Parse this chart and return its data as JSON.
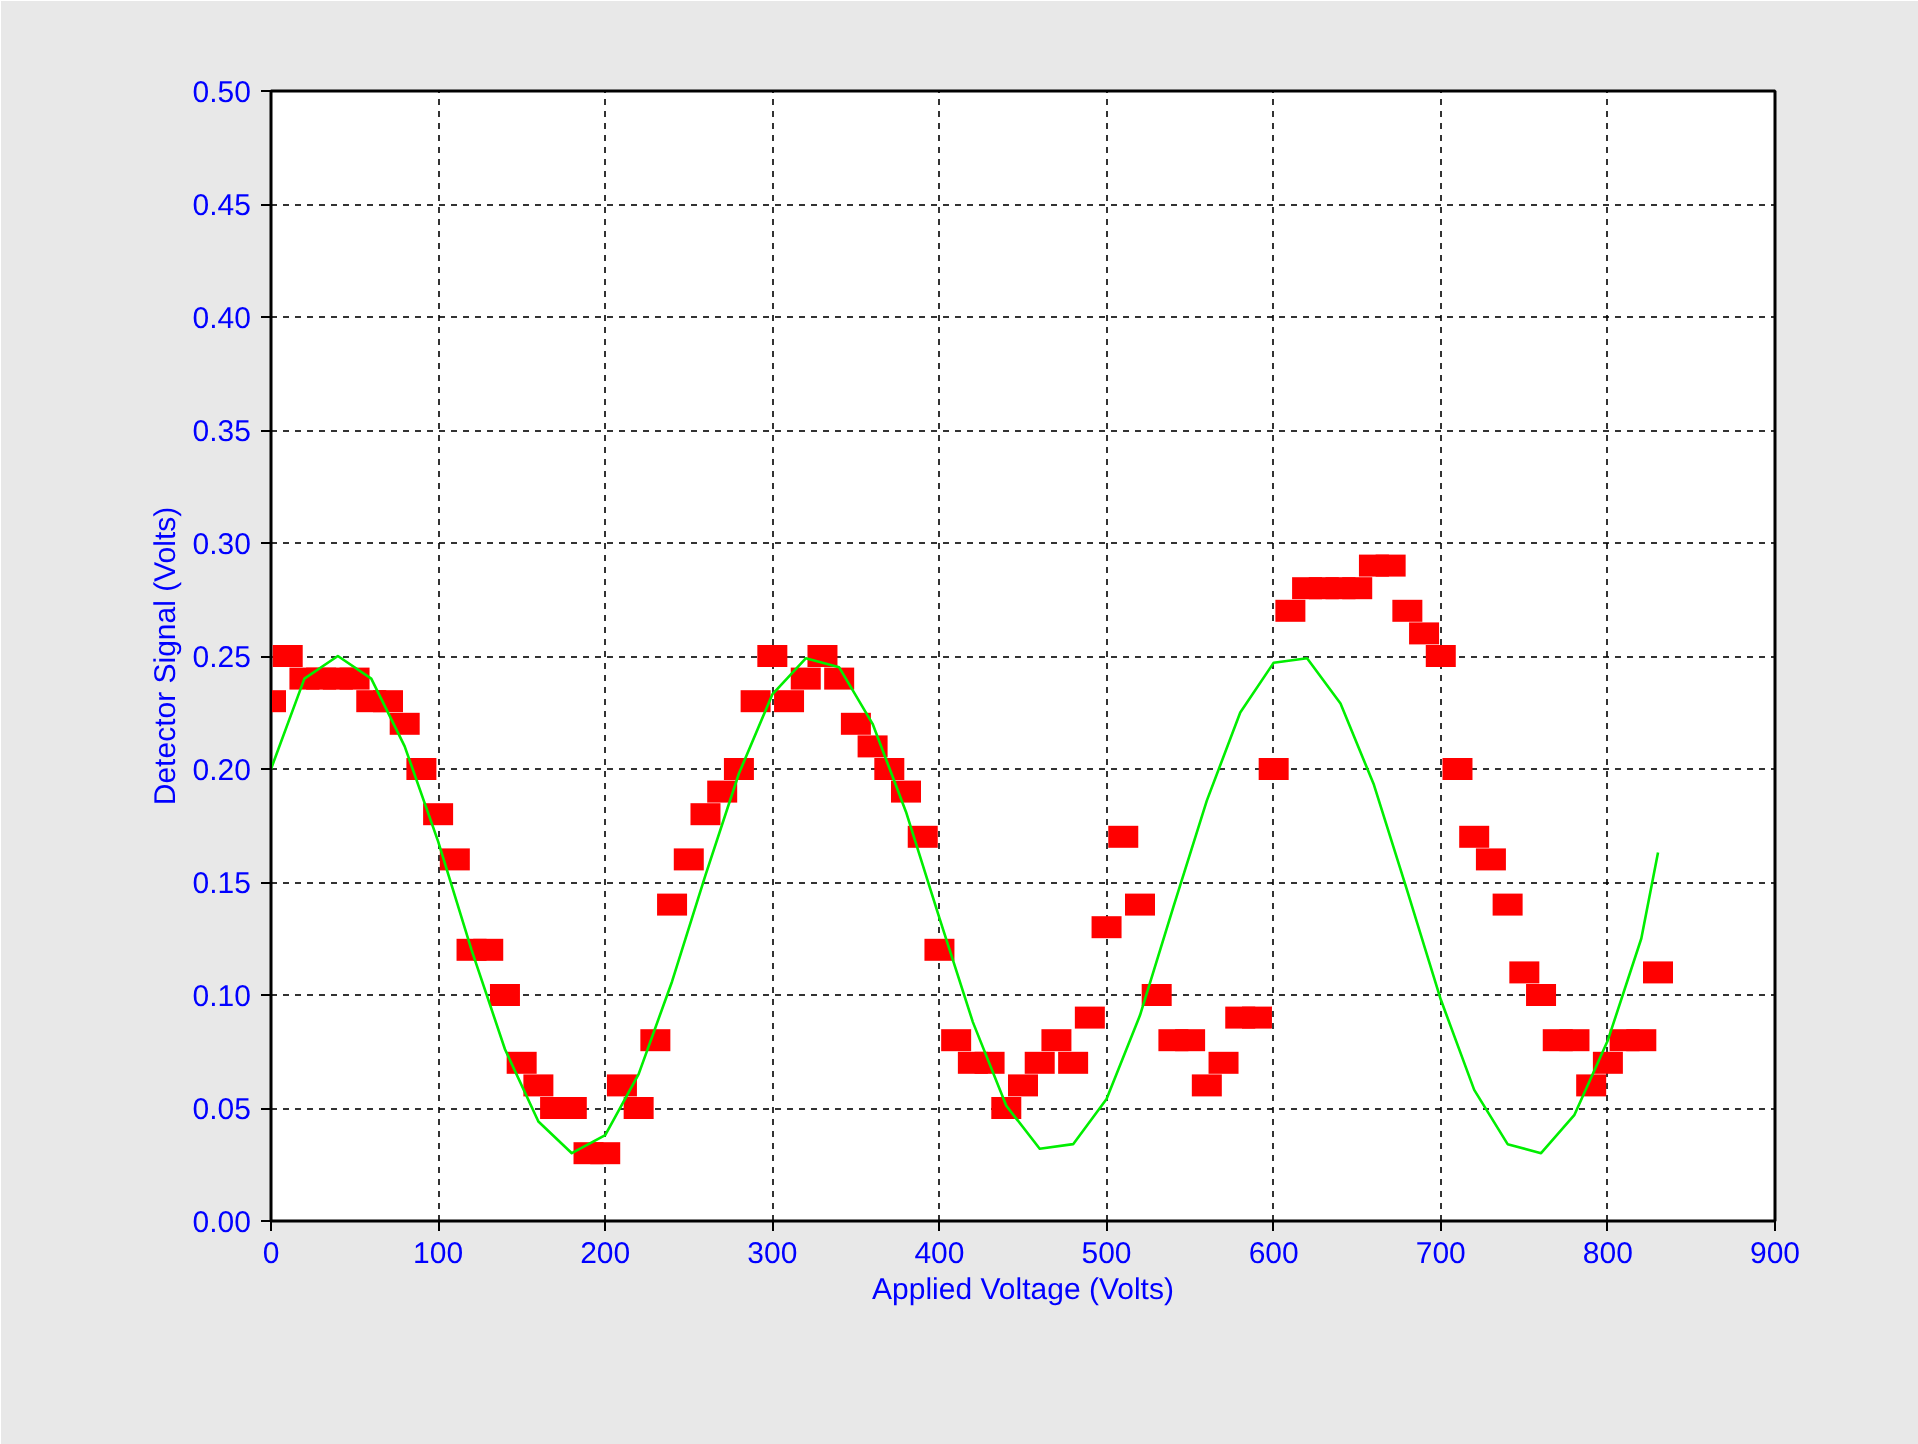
{
  "chart_data": {
    "type": "scatter",
    "xlabel": "Applied Voltage (Volts)",
    "ylabel": "Detector Signal (Volts)",
    "xlim": [
      0,
      900
    ],
    "xticks": [
      0,
      100,
      200,
      300,
      400,
      500,
      600,
      700,
      800,
      900
    ],
    "ylim": [
      0,
      0.5
    ],
    "yticks": [
      {
        "value": 0,
        "label": "0.00"
      },
      {
        "value": 0.05,
        "label": "0.05"
      },
      {
        "value": 0.1,
        "label": "0.10"
      },
      {
        "value": 0.15,
        "label": "0.15"
      },
      {
        "value": 0.2,
        "label": "0.20"
      },
      {
        "value": 0.25,
        "label": "0.25"
      },
      {
        "value": 0.3,
        "label": "0.30"
      },
      {
        "value": 0.35,
        "label": "0.35"
      },
      {
        "value": 0.4,
        "label": "0.40"
      },
      {
        "value": 0.45,
        "label": "0.45"
      },
      {
        "value": 0.5,
        "label": "0.50"
      }
    ],
    "grid": true,
    "series": [
      {
        "color": "#ff0000",
        "marker": "square",
        "x": [
          0,
          10,
          20,
          30,
          40,
          50,
          60,
          70,
          80,
          90,
          100,
          110,
          120,
          130,
          140,
          150,
          160,
          170,
          180,
          190,
          200,
          210,
          220,
          230,
          240,
          250,
          260,
          270,
          280,
          290,
          300,
          310,
          320,
          330,
          340,
          350,
          360,
          370,
          380,
          390,
          400,
          410,
          420,
          430,
          440,
          450,
          460,
          470,
          480,
          490,
          500,
          510,
          520,
          530,
          540,
          550,
          560,
          570,
          580,
          590,
          600,
          610,
          620,
          630,
          640,
          650,
          660,
          670,
          680,
          690,
          700,
          710,
          720,
          730,
          740,
          750,
          760,
          770,
          780,
          790,
          800,
          810,
          820,
          830
        ],
        "values": [
          0.23,
          0.25,
          0.24,
          0.24,
          0.24,
          0.24,
          0.23,
          0.23,
          0.22,
          0.2,
          0.18,
          0.16,
          0.12,
          0.12,
          0.1,
          0.07,
          0.06,
          0.05,
          0.05,
          0.03,
          0.03,
          0.06,
          0.05,
          0.08,
          0.14,
          0.16,
          0.18,
          0.19,
          0.2,
          0.23,
          0.25,
          0.23,
          0.24,
          0.25,
          0.24,
          0.22,
          0.21,
          0.2,
          0.19,
          0.17,
          0.12,
          0.08,
          0.07,
          0.07,
          0.05,
          0.06,
          0.07,
          0.08,
          0.07,
          0.09,
          0.13,
          0.17,
          0.14,
          0.1,
          0.08,
          0.08,
          0.06,
          0.07,
          0.09,
          0.09,
          0.2,
          0.27,
          0.28,
          0.28,
          0.28,
          0.28,
          0.29,
          0.29,
          0.27,
          0.26,
          0.25,
          0.2,
          0.17,
          0.16,
          0.14,
          0.11,
          0.1,
          0.08,
          0.08,
          0.06,
          0.07,
          0.08,
          0.08,
          0.11
        ]
      },
      {
        "type": "line",
        "color": "#00ee00",
        "line_style": "solid",
        "x": [
          0,
          20,
          40,
          60,
          80,
          100,
          120,
          140,
          160,
          180,
          200,
          220,
          240,
          260,
          280,
          300,
          320,
          340,
          360,
          380,
          400,
          420,
          440,
          460,
          480,
          500,
          520,
          540,
          560,
          580,
          600,
          620,
          640,
          660,
          680,
          700,
          720,
          740,
          760,
          780,
          800,
          820,
          830
        ],
        "values": [
          0.2,
          0.24,
          0.25,
          0.24,
          0.21,
          0.168,
          0.12,
          0.076,
          0.044,
          0.03,
          0.038,
          0.065,
          0.106,
          0.153,
          0.198,
          0.233,
          0.249,
          0.245,
          0.22,
          0.181,
          0.134,
          0.088,
          0.051,
          0.032,
          0.034,
          0.054,
          0.091,
          0.139,
          0.186,
          0.225,
          0.247,
          0.249,
          0.229,
          0.193,
          0.146,
          0.098,
          0.058,
          0.034,
          0.03,
          0.047,
          0.08,
          0.125,
          0.163
        ]
      }
    ]
  }
}
